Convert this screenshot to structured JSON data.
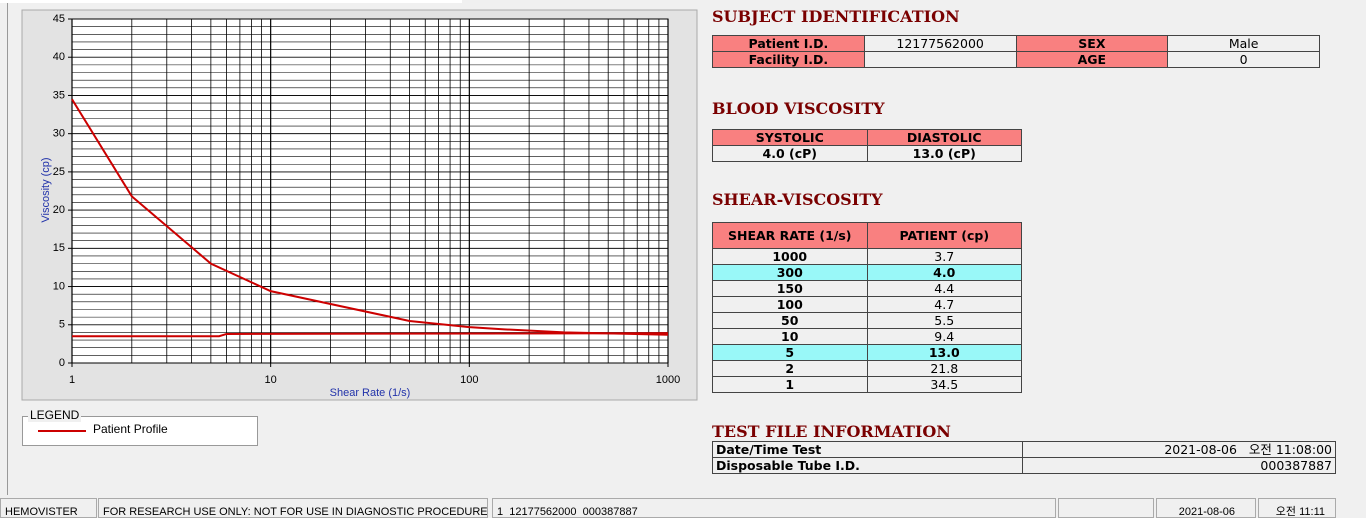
{
  "chart_data": {
    "type": "line",
    "xlabel": "Shear Rate (1/s)",
    "ylabel": "Viscosity (cp)",
    "xlog": true,
    "xlim": [
      1,
      1000
    ],
    "xticks": [
      1,
      10,
      100,
      1000
    ],
    "ylim": [
      0,
      45
    ],
    "yticks": [
      0,
      5,
      10,
      15,
      20,
      25,
      30,
      35,
      40,
      45
    ],
    "grid": true,
    "legend": {
      "title": "LEGEND"
    },
    "series": [
      {
        "name": "Patient Profile",
        "color": "#cc0000",
        "x": [
          1,
          2,
          5,
          10,
          50,
          100,
          150,
          300,
          1000
        ],
        "values": [
          34.5,
          21.8,
          13.0,
          9.4,
          5.5,
          4.7,
          4.4,
          4.0,
          3.7
        ]
      },
      {
        "color": "#cc0000",
        "x": [
          1,
          5.5,
          6,
          1000
        ],
        "values": [
          3.5,
          3.5,
          3.8,
          3.9
        ]
      }
    ]
  },
  "subject": {
    "title": "SUBJECT IDENTIFICATION",
    "rows": [
      [
        "Patient I.D.",
        "12177562000",
        "SEX",
        "Male"
      ],
      [
        "Facility I.D.",
        null,
        "AGE",
        "0"
      ]
    ]
  },
  "blood": {
    "title": "BLOOD VISCOSITY",
    "headers": [
      "SYSTOLIC",
      "DIASTOLIC"
    ],
    "values": [
      "4.0 (cP)",
      "13.0 (cP)"
    ]
  },
  "shear": {
    "title": "SHEAR-VISCOSITY",
    "headers": [
      "SHEAR RATE (1/s)",
      "PATIENT (cp)"
    ],
    "highlighted_rows": [
      1,
      6
    ],
    "rows": [
      [
        "1000",
        "3.7"
      ],
      [
        "300",
        "4.0"
      ],
      [
        "150",
        "4.4"
      ],
      [
        "100",
        "4.7"
      ],
      [
        "50",
        "5.5"
      ],
      [
        "10",
        "9.4"
      ],
      [
        "5",
        "13.0"
      ],
      [
        "2",
        "21.8"
      ],
      [
        "1",
        "34.5"
      ]
    ]
  },
  "test_file": {
    "title": "TEST FILE INFORMATION",
    "rows": [
      [
        "Date/Time Test",
        "2021-08-06   오전 11:08:00"
      ],
      [
        "Disposable Tube I.D.",
        "000387887"
      ]
    ]
  },
  "status_bar": [
    "HEMOVISTER",
    "FOR RESEARCH USE ONLY: NOT FOR USE IN DIAGNOSTIC PROCEDURES",
    "1  12177562000  000387887",
    "2021-08-06",
    "오전 11:11"
  ]
}
